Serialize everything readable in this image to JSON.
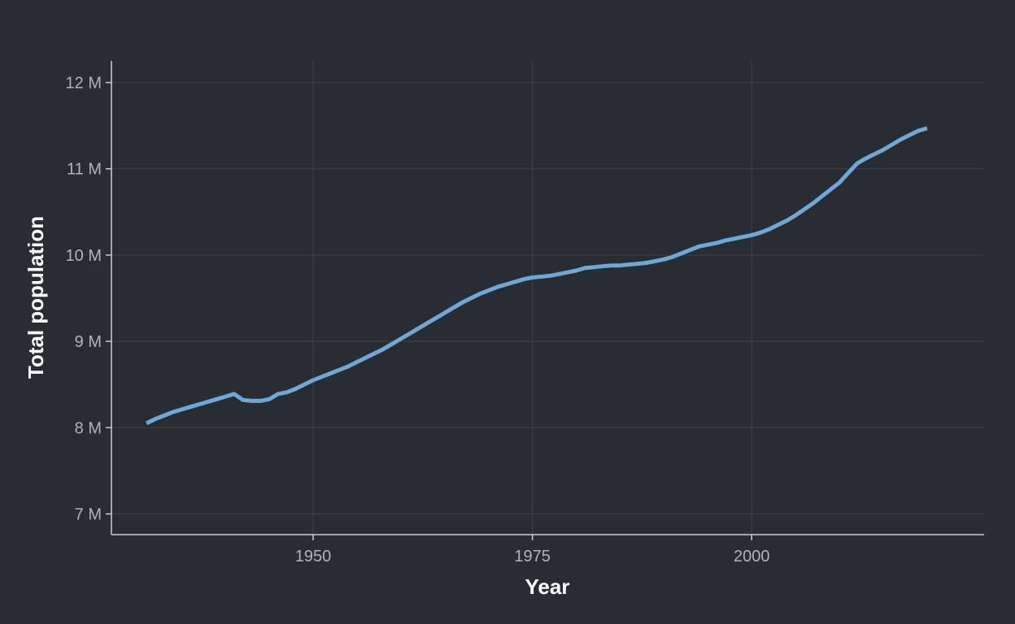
{
  "chart_data": {
    "type": "line",
    "xlabel": "Year",
    "ylabel": "Total population",
    "xlim": [
      1927,
      2026.5
    ],
    "ylim": [
      6.76,
      12.25
    ],
    "x_ticks": [
      1950,
      1975,
      2000
    ],
    "x_tick_labels": [
      "1950",
      "1975",
      "2000"
    ],
    "y_ticks": [
      7,
      8,
      9,
      10,
      11,
      12
    ],
    "y_tick_labels": [
      "7 M",
      "8 M",
      "9 M",
      "10 M",
      "11 M",
      "12 M"
    ],
    "grid": true,
    "colors": {
      "background": "#282c33",
      "line": "#6fa8d6"
    },
    "series": [
      {
        "x": [
          1931,
          1932,
          1933,
          1934,
          1935,
          1936,
          1937,
          1938,
          1939,
          1940,
          1941,
          1942,
          1943,
          1944,
          1945,
          1946,
          1947,
          1948,
          1949,
          1950,
          1951,
          1952,
          1953,
          1954,
          1955,
          1956,
          1957,
          1958,
          1959,
          1960,
          1961,
          1962,
          1963,
          1964,
          1965,
          1966,
          1967,
          1968,
          1969,
          1970,
          1971,
          1972,
          1973,
          1974,
          1975,
          1976,
          1977,
          1978,
          1979,
          1980,
          1981,
          1982,
          1983,
          1984,
          1985,
          1986,
          1987,
          1988,
          1989,
          1990,
          1991,
          1992,
          1993,
          1994,
          1995,
          1996,
          1997,
          1998,
          1999,
          2000,
          2001,
          2002,
          2003,
          2004,
          2005,
          2006,
          2007,
          2008,
          2009,
          2010,
          2011,
          2012,
          2013,
          2014,
          2015,
          2016,
          2017,
          2018,
          2019,
          2020
        ],
        "y": [
          8.05,
          8.1,
          8.14,
          8.18,
          8.21,
          8.24,
          8.27,
          8.3,
          8.33,
          8.36,
          8.39,
          8.32,
          8.31,
          8.31,
          8.33,
          8.39,
          8.41,
          8.45,
          8.5,
          8.55,
          8.59,
          8.63,
          8.67,
          8.71,
          8.76,
          8.81,
          8.86,
          8.91,
          8.97,
          9.03,
          9.09,
          9.15,
          9.21,
          9.27,
          9.33,
          9.39,
          9.45,
          9.5,
          9.55,
          9.59,
          9.63,
          9.66,
          9.69,
          9.72,
          9.74,
          9.75,
          9.76,
          9.78,
          9.8,
          9.82,
          9.85,
          9.86,
          9.87,
          9.88,
          9.88,
          9.89,
          9.9,
          9.91,
          9.93,
          9.95,
          9.98,
          10.02,
          10.06,
          10.1,
          10.12,
          10.14,
          10.17,
          10.19,
          10.21,
          10.23,
          10.26,
          10.3,
          10.35,
          10.4,
          10.46,
          10.53,
          10.6,
          10.68,
          10.76,
          10.84,
          10.95,
          11.06,
          11.12,
          11.17,
          11.22,
          11.28,
          11.34,
          11.39,
          11.44,
          11.47
        ]
      }
    ]
  }
}
